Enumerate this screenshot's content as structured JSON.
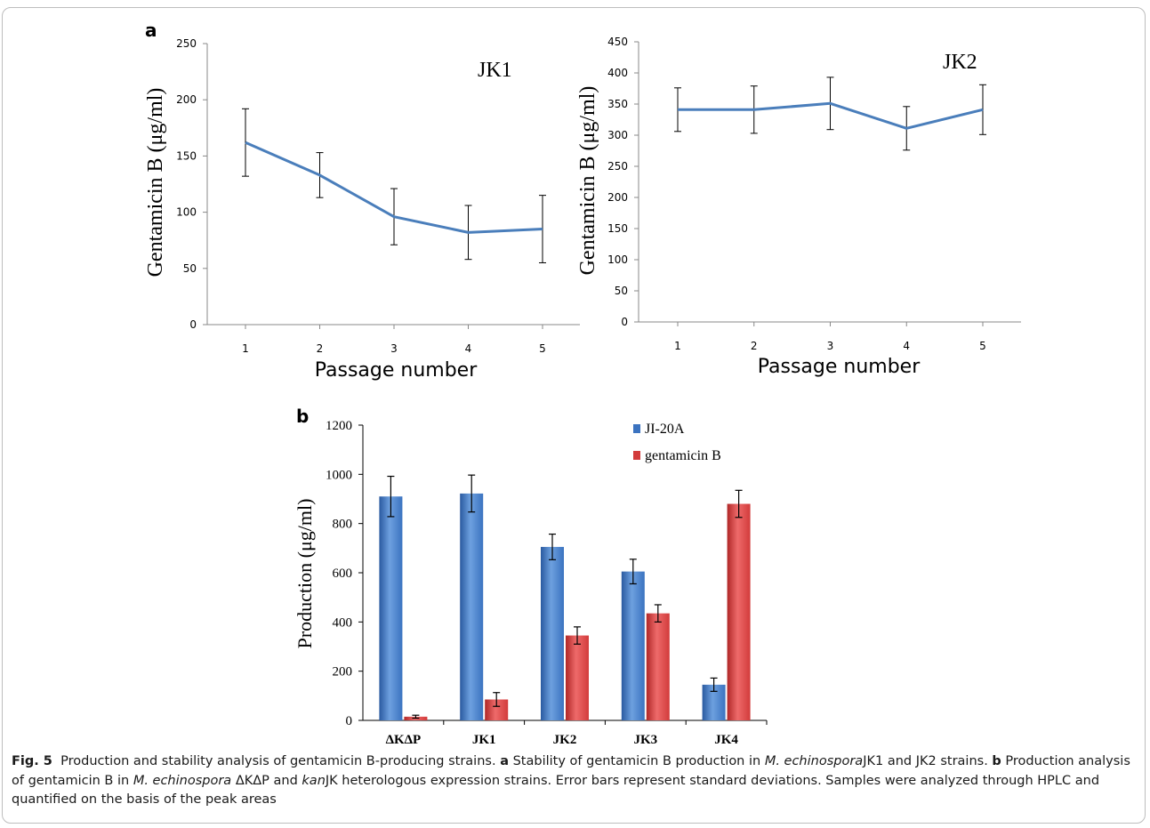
{
  "panel_labels": {
    "a": "a",
    "b": "b"
  },
  "colors": {
    "line": "#4a7ebb",
    "bar_ji20a": "#3b73c0",
    "bar_gentb": "#d23b3b",
    "axis": "#000000"
  },
  "chart_data": [
    {
      "id": "a-left",
      "type": "line",
      "annotation": "JK1",
      "xlabel": "Passage number",
      "ylabel": "Gentamicin B (μg/ml)",
      "x": [
        1,
        2,
        3,
        4,
        5
      ],
      "xticks": [
        "1",
        "2",
        "3",
        "4",
        "5"
      ],
      "yticks": [
        "0",
        "50",
        "100",
        "150",
        "200",
        "250"
      ],
      "ylim": [
        0,
        250
      ],
      "series": [
        {
          "values": [
            162,
            133,
            96,
            82,
            85
          ],
          "error": [
            30,
            20,
            25,
            24,
            30
          ]
        }
      ]
    },
    {
      "id": "a-right",
      "type": "line",
      "annotation": "JK2",
      "xlabel": "Passage number",
      "ylabel": "Gentamicin B (μg/ml)",
      "x": [
        1,
        2,
        3,
        4,
        5
      ],
      "xticks": [
        "1",
        "2",
        "3",
        "4",
        "5"
      ],
      "yticks": [
        "0",
        "50",
        "100",
        "150",
        "200",
        "250",
        "300",
        "350",
        "400",
        "450"
      ],
      "ylim": [
        0,
        450
      ],
      "series": [
        {
          "values": [
            341,
            341,
            351,
            311,
            341
          ],
          "error": [
            35,
            38,
            42,
            35,
            40
          ]
        }
      ]
    },
    {
      "id": "b",
      "type": "bar",
      "ylabel": "Production (μg/ml)",
      "categories": [
        "ΔKΔP",
        "JK1",
        "JK2",
        "JK3",
        "JK4"
      ],
      "yticks": [
        "0",
        "200",
        "400",
        "600",
        "800",
        "1000",
        "1200"
      ],
      "ylim": [
        0,
        1200
      ],
      "legend_position": "top-right",
      "series": [
        {
          "name": "JI-20A",
          "values": [
            910,
            922,
            705,
            605,
            145
          ],
          "error": [
            82,
            75,
            52,
            50,
            27
          ]
        },
        {
          "name": "gentamicin B",
          "values": [
            15,
            85,
            345,
            435,
            880
          ],
          "error": [
            6,
            28,
            35,
            35,
            55
          ]
        }
      ]
    }
  ],
  "caption": {
    "fig_label": "Fig. 5",
    "title": "Production and stability analysis of gentamicin B-producing strains.",
    "a_label": "a",
    "a_text_1": "Stability of gentamicin B production in",
    "a_species": "M. echinospora",
    "a_text_2": "JK1 and JK2 strains.",
    "b_label": "b",
    "b_text_1": "Production analysis of gentamicin B in",
    "b_species": "M. echinospora",
    "b_text_2": "ΔKΔP and",
    "b_gene": "kan",
    "b_text_3": "JK heterologous expression strains. Error bars represent standard deviations. Samples were analyzed through HPLC and quantified on the basis of the peak areas"
  }
}
